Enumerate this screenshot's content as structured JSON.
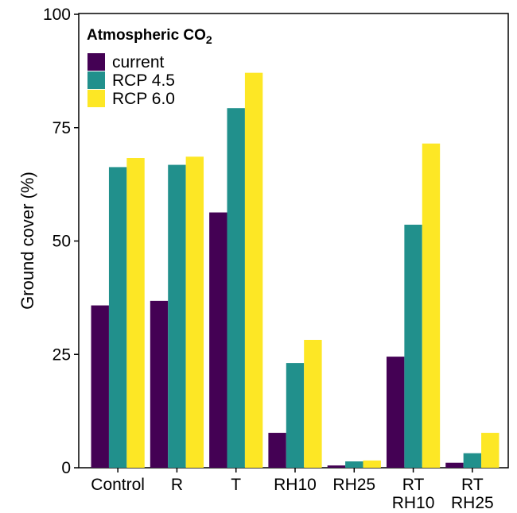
{
  "chart_data": {
    "type": "bar",
    "categories": [
      [
        "Control"
      ],
      [
        "R"
      ],
      [
        "T"
      ],
      [
        "RH10"
      ],
      [
        "RH25"
      ],
      [
        "RT",
        "RH10"
      ],
      [
        "RT",
        "RH25"
      ]
    ],
    "series": [
      {
        "name": "current",
        "color": "#440154",
        "values": [
          35.8,
          36.8,
          56.3,
          7.7,
          0.5,
          24.5,
          1.1
        ]
      },
      {
        "name": "RCP 4.5",
        "color": "#21908C",
        "values": [
          66.3,
          66.8,
          79.3,
          23.1,
          1.4,
          53.6,
          3.2
        ]
      },
      {
        "name": "RCP 6.0",
        "color": "#FDE725",
        "values": [
          68.3,
          68.6,
          87.1,
          28.2,
          1.6,
          71.5,
          7.7
        ]
      }
    ],
    "legend": {
      "title": "Atmospheric CO",
      "title_subscript": "2",
      "placement": "top-left"
    },
    "xlabel": "",
    "ylabel": "Ground cover (%)",
    "ylim": [
      0,
      100
    ],
    "yticks": [
      0,
      25,
      50,
      75,
      100
    ],
    "grid": false
  }
}
